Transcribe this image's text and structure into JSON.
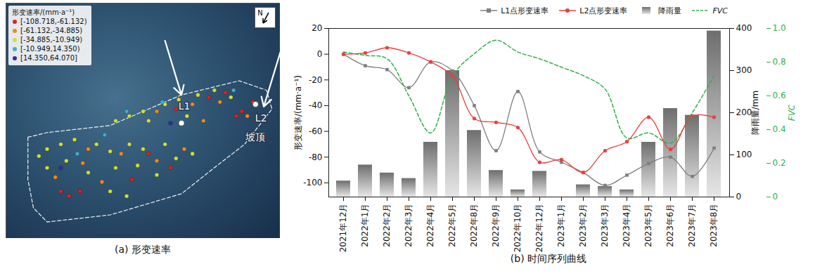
{
  "chart_data": [
    {
      "type": "scatter",
      "caption": "(a) 形变速率",
      "legend_title": "形变速率/(mm·a⁻¹)",
      "legend": "top-left",
      "north": "N",
      "xlim": [
        0,
        100
      ],
      "ylim": [
        0,
        100
      ],
      "tick_labels": false,
      "series": [
        {
          "name": "[-108.718,-61.132)",
          "color": "#e0211d",
          "x": [
            74,
            80,
            84,
            86,
            62,
            90,
            20,
            23,
            27,
            60,
            46,
            52
          ],
          "y": [
            60,
            62,
            52,
            54,
            55,
            58,
            20,
            18,
            20,
            30,
            25,
            36
          ]
        },
        {
          "name": "[-61.132,-34.885)",
          "color": "#f28a1c",
          "x": [
            55,
            68,
            78,
            72,
            88,
            30,
            42,
            55,
            18,
            35,
            28,
            65
          ],
          "y": [
            54,
            57,
            58,
            50,
            52,
            38,
            36,
            33,
            26,
            24,
            32,
            38
          ]
        },
        {
          "name": "[-34.885,-10.949)",
          "color": "#d6e030",
          "x": [
            40,
            45,
            50,
            58,
            63,
            70,
            76,
            82,
            52,
            66,
            15,
            20,
            25,
            33,
            38,
            45,
            50,
            22,
            30,
            40,
            48,
            55,
            15,
            12,
            38,
            44,
            58,
            62,
            68
          ],
          "y": [
            50,
            52,
            54,
            57,
            59,
            61,
            63,
            60,
            50,
            52,
            38,
            40,
            42,
            40,
            37,
            40,
            38,
            33,
            28,
            30,
            31,
            27,
            30,
            35,
            20,
            18,
            40,
            34,
            36
          ]
        },
        {
          "name": "[-10.949,14.350)",
          "color": "#3fb0c8",
          "x": [
            57,
            44,
            83,
            36,
            26
          ],
          "y": [
            58,
            54,
            63,
            44,
            36
          ]
        },
        {
          "name": "[14.350,64.070]",
          "color": "#3b2a9c",
          "x": [
            60,
            20
          ],
          "y": [
            49,
            30
          ]
        }
      ],
      "boundary": {
        "x": [
          8,
          15,
          38,
          64,
          85,
          95,
          97,
          87,
          77,
          64,
          38,
          15,
          10,
          8,
          8
        ],
        "y": [
          43,
          45,
          48,
          61,
          67,
          63,
          55,
          40,
          31,
          19,
          10,
          7,
          13,
          25,
          43
        ]
      },
      "markers": {
        "x": [
          64,
          91
        ],
        "y": [
          49,
          57
        ]
      },
      "annotations": [
        {
          "text": "L1",
          "x": 65,
          "y": 56
        },
        {
          "text": "L2",
          "x": 93,
          "y": 51
        },
        {
          "text": "坡顶",
          "x": 91,
          "y": 43
        }
      ]
    },
    {
      "type": "line",
      "caption": "(b) 时间序列曲线",
      "legend": "top-right",
      "ylabel": "形变速率/(mm·a⁻¹)",
      "y2label": "降雨量/mm",
      "y3label": "FVC",
      "categories": [
        "2021年12月",
        "2022年1月",
        "2022年2月",
        "2022年3月",
        "2022年4月",
        "2022年5月",
        "2022年8月",
        "2022年9月",
        "2022年10月",
        "2022年12月",
        "2023年1月",
        "2023年2月",
        "2023年3月",
        "2023年4月",
        "2023年5月",
        "2023年6月",
        "2023年7月",
        "2023年8月"
      ],
      "ylim": [
        -111,
        20
      ],
      "yticks": [
        -100,
        -80,
        -60,
        -40,
        -20,
        0,
        20
      ],
      "y2lim": [
        0,
        400
      ],
      "y2ticks": [
        0,
        100,
        200,
        300,
        400
      ],
      "y3lim": [
        0,
        1
      ],
      "y3ticks": [
        0,
        0.2,
        0.4,
        0.6,
        0.8,
        {
          "value": 1,
          "label": "1.0"
        }
      ],
      "series": [
        {
          "name": "L1点形变速率",
          "type": "line",
          "color": "#7f7f7f",
          "marker": "square",
          "values": [
            0,
            -9,
            -12,
            -26,
            -6,
            -13,
            -40,
            -75,
            -29,
            -76,
            -84,
            -92,
            -102,
            -94,
            -85,
            -80,
            -95,
            -73
          ]
        },
        {
          "name": "L2点形变速率",
          "type": "line",
          "color": "#e8413c",
          "marker": "circle",
          "values": [
            0,
            1,
            5,
            1,
            -6,
            -17,
            -50,
            -53,
            -57,
            -84,
            -82,
            -92,
            -75,
            -68,
            -49,
            -74,
            -48,
            -49
          ]
        },
        {
          "name": "降雨量",
          "type": "bar",
          "axis": "y2",
          "color": "#6e6e6e",
          "values": [
            38,
            76,
            57,
            44,
            130,
            300,
            158,
            63,
            17,
            61,
            0,
            29,
            25,
            17,
            130,
            210,
            194,
            394
          ]
        },
        {
          "name": "FVC",
          "type": "line",
          "axis": "y3",
          "color": "#2fb24a",
          "line_style": "dashed",
          "values": [
            0.86,
            0.84,
            0.82,
            0.6,
            0.38,
            0.72,
            0.85,
            0.93,
            0.86,
            0.82,
            0.77,
            0.72,
            0.64,
            0.35,
            0.38,
            0.32,
            0.5,
            0.72
          ]
        }
      ]
    }
  ]
}
